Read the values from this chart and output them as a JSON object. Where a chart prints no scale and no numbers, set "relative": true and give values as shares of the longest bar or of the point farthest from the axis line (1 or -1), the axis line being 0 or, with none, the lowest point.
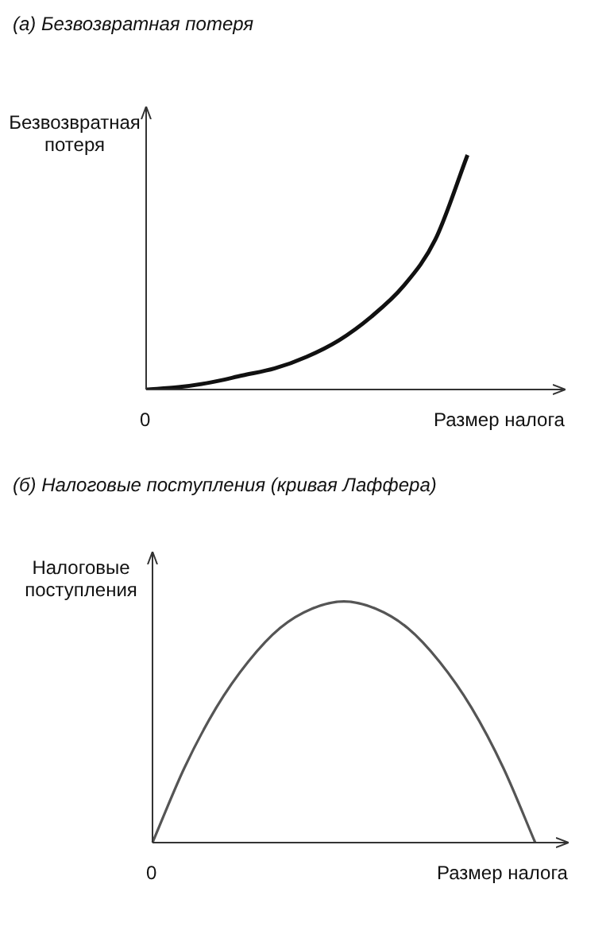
{
  "chart_data": [
    {
      "type": "line",
      "title": "(а) Безвозвратная потеря",
      "ylabel": "Безвозвратная потеря",
      "xlabel": "Размер налога",
      "annotations": [
        "0"
      ],
      "relative": true,
      "marker": "none",
      "categories": [
        null,
        null,
        null,
        null,
        null,
        null,
        null,
        null,
        null,
        null,
        null,
        null,
        null,
        null
      ],
      "series": [
        {
          "color": "#111111",
          "values": [
            0,
            0.01,
            0.03,
            0.06,
            0.09,
            0.14,
            0.21,
            0.31,
            0.44,
            0.64,
            1,
            null,
            null,
            null
          ]
        }
      ]
    },
    {
      "type": "line",
      "title": "(б) Налоговые поступления (кривая Лаффера)",
      "ylabel": "Налоговые поступления",
      "xlabel": "Размер налога",
      "annotations": [
        "0"
      ],
      "relative": true,
      "marker": "none",
      "categories": [
        null,
        null,
        null,
        null,
        null,
        null,
        null,
        null,
        null,
        null,
        null,
        null,
        null,
        null
      ],
      "series": [
        {
          "color": "#555555",
          "values": [
            0,
            0.31,
            0.56,
            0.75,
            0.89,
            0.97,
            1,
            0.97,
            0.89,
            0.75,
            0.56,
            0.31,
            0,
            null
          ]
        }
      ]
    }
  ]
}
